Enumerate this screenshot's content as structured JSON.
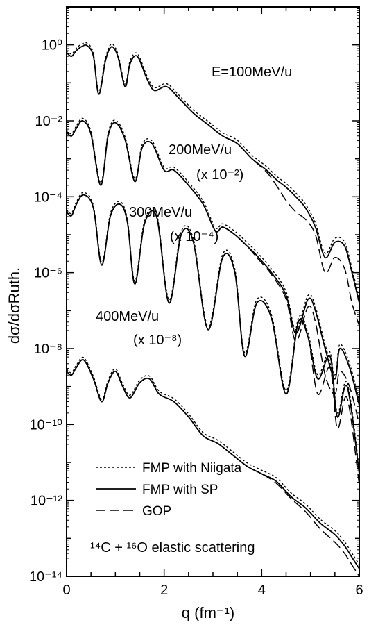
{
  "chart_data": {
    "type": "line",
    "xlabel": "q (fm⁻¹)",
    "ylabel": "dσ/dσRuth.",
    "xlim": [
      0,
      6
    ],
    "ylim_log10": [
      -14,
      1
    ],
    "y_scale": "log",
    "x_ticks": [
      0,
      2,
      4,
      6
    ],
    "y_tick_labels": [
      "10⁰",
      "10⁻²",
      "10⁻⁴",
      "10⁻⁶",
      "10⁻⁸",
      "10⁻¹⁰",
      "10⁻¹²",
      "10⁻¹⁴"
    ],
    "annotations": [
      {
        "id": "e100",
        "text": "E=100MeV/u"
      },
      {
        "id": "e200",
        "text": "200MeV/u"
      },
      {
        "id": "s200",
        "text": "(x 10⁻²)"
      },
      {
        "id": "e300",
        "text": "300MeV/u"
      },
      {
        "id": "s300",
        "text": "(x 10⁻⁴)"
      },
      {
        "id": "e400",
        "text": "400MeV/u"
      },
      {
        "id": "s400",
        "text": "(x 10⁻⁸)"
      },
      {
        "id": "reaction",
        "text": "¹⁴C + ¹⁶O elastic scattering"
      }
    ],
    "legend": [
      {
        "label": "FMP with Niigata",
        "style": "dotted"
      },
      {
        "label": "FMP with SP",
        "style": "solid"
      },
      {
        "label": "GOP",
        "style": "dashed"
      }
    ],
    "legend_position": "bottom-left",
    "series": [
      {
        "energy": "100MeV/u",
        "x": [
          0.0,
          0.1,
          0.2,
          0.3,
          0.42,
          0.55,
          0.66,
          0.8,
          0.92,
          1.05,
          1.2,
          1.3,
          1.45,
          1.65,
          1.8,
          2.05,
          2.3,
          2.6,
          2.9,
          3.2,
          3.5,
          3.8,
          4.1,
          4.3,
          4.5,
          4.7,
          4.9,
          5.1,
          5.3,
          5.5,
          5.7,
          5.85,
          6.0
        ],
        "log10_y": [
          -0.2,
          -0.3,
          -0.15,
          -0.05,
          -0.02,
          -0.3,
          -1.3,
          -0.4,
          -0.05,
          -0.3,
          -1.1,
          -0.5,
          -0.3,
          -0.9,
          -1.2,
          -1.1,
          -1.4,
          -1.8,
          -2.1,
          -2.4,
          -2.6,
          -3.0,
          -3.3,
          -3.55,
          -3.75,
          -4.0,
          -4.3,
          -4.8,
          -5.6,
          -5.2,
          -5.3,
          -6.0,
          -6.8
        ],
        "gop_log10_y": [
          -0.2,
          -0.3,
          -0.15,
          -0.05,
          -0.02,
          -0.3,
          -1.3,
          -0.4,
          -0.05,
          -0.3,
          -1.1,
          -0.5,
          -0.3,
          -0.9,
          -1.2,
          -1.1,
          -1.4,
          -1.8,
          -2.1,
          -2.4,
          -2.6,
          -3.0,
          -3.35,
          -3.7,
          -4.1,
          -4.4,
          -4.6,
          -5.0,
          -6.0,
          -5.6,
          -5.9,
          -6.8,
          -7.4
        ]
      },
      {
        "energy": "200MeV/u",
        "x": [
          0.0,
          0.1,
          0.2,
          0.33,
          0.5,
          0.7,
          0.85,
          1.0,
          1.2,
          1.4,
          1.55,
          1.75,
          2.0,
          2.2,
          2.5,
          2.8,
          3.05,
          3.2,
          3.45,
          3.7,
          3.9,
          4.2,
          4.5,
          4.7,
          4.95,
          5.1,
          5.3,
          5.5,
          5.6,
          5.8,
          6.0
        ],
        "log10_y": [
          -2.3,
          -2.4,
          -2.2,
          -2.0,
          -2.35,
          -3.7,
          -2.4,
          -2.05,
          -2.5,
          -3.6,
          -2.7,
          -2.6,
          -3.3,
          -3.3,
          -3.7,
          -4.2,
          -4.9,
          -4.8,
          -5.0,
          -5.3,
          -5.55,
          -6.0,
          -6.6,
          -7.6,
          -6.7,
          -7.0,
          -8.0,
          -8.8,
          -8.0,
          -8.5,
          -9.5
        ],
        "gop_log10_y": [
          -2.3,
          -2.4,
          -2.2,
          -2.0,
          -2.35,
          -3.7,
          -2.4,
          -2.05,
          -2.5,
          -3.6,
          -2.7,
          -2.6,
          -3.3,
          -3.3,
          -3.7,
          -4.2,
          -4.9,
          -4.8,
          -5.0,
          -5.3,
          -5.6,
          -6.05,
          -6.7,
          -7.8,
          -6.9,
          -7.3,
          -8.7,
          -9.2,
          -8.6,
          -9.0,
          -10.0
        ]
      },
      {
        "energy": "300MeV/u",
        "x": [
          0.0,
          0.1,
          0.2,
          0.35,
          0.55,
          0.72,
          0.9,
          1.1,
          1.25,
          1.4,
          1.6,
          1.85,
          2.1,
          2.35,
          2.6,
          2.9,
          3.2,
          3.45,
          3.65,
          3.9,
          4.2,
          4.5,
          4.75,
          4.95,
          5.15,
          5.4,
          5.55,
          5.75,
          6.0
        ],
        "log10_y": [
          -4.4,
          -4.5,
          -4.2,
          -3.95,
          -4.3,
          -5.8,
          -4.5,
          -4.2,
          -4.7,
          -6.3,
          -4.7,
          -4.55,
          -6.8,
          -5.0,
          -5.2,
          -7.5,
          -5.6,
          -6.0,
          -8.2,
          -6.8,
          -7.2,
          -9.2,
          -7.3,
          -7.7,
          -8.8,
          -8.2,
          -9.8,
          -9.0,
          -11.3
        ],
        "gop_log10_y": [
          -4.4,
          -4.5,
          -4.2,
          -3.95,
          -4.3,
          -5.8,
          -4.5,
          -4.2,
          -4.7,
          -6.3,
          -4.7,
          -4.55,
          -6.8,
          -5.0,
          -5.2,
          -7.5,
          -5.6,
          -6.0,
          -8.2,
          -6.8,
          -7.2,
          -9.2,
          -7.3,
          -7.7,
          -9.2,
          -8.5,
          -10.1,
          -9.3,
          -11.6
        ]
      },
      {
        "energy": "400MeV/u",
        "x": [
          0.0,
          0.1,
          0.2,
          0.35,
          0.55,
          0.72,
          0.85,
          1.0,
          1.15,
          1.3,
          1.5,
          1.7,
          1.9,
          2.2,
          2.5,
          2.8,
          3.1,
          3.4,
          3.7,
          4.0,
          4.3,
          4.6,
          4.9,
          5.2,
          5.5,
          5.7,
          5.85,
          6.0
        ],
        "log10_y": [
          -8.6,
          -8.7,
          -8.5,
          -8.3,
          -8.8,
          -9.4,
          -8.9,
          -8.6,
          -9.0,
          -9.3,
          -8.9,
          -8.8,
          -9.2,
          -9.4,
          -9.8,
          -10.3,
          -10.5,
          -10.8,
          -11.1,
          -11.3,
          -11.5,
          -11.9,
          -12.2,
          -12.6,
          -12.9,
          -13.2,
          -13.5,
          -13.8
        ],
        "gop_log10_y": [
          -8.6,
          -8.7,
          -8.5,
          -8.3,
          -8.8,
          -9.4,
          -8.9,
          -8.6,
          -9.0,
          -9.3,
          -8.9,
          -8.8,
          -9.2,
          -9.4,
          -9.8,
          -10.3,
          -10.5,
          -10.8,
          -11.1,
          -11.3,
          -11.55,
          -11.95,
          -12.3,
          -12.75,
          -13.1,
          -13.4,
          -13.7,
          -14.0
        ]
      }
    ]
  }
}
